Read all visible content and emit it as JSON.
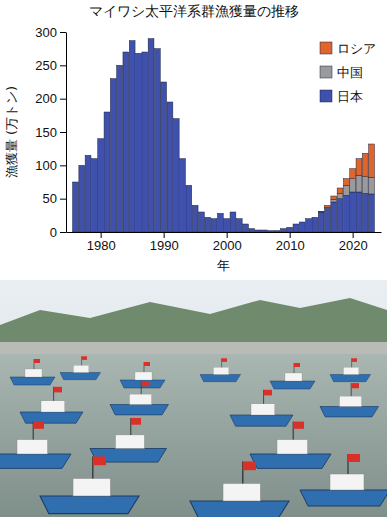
{
  "chart_data": {
    "type": "bar",
    "stacked": true,
    "title": "マイワシ太平洋系群漁獲量の推移",
    "x_label": "年",
    "y_label": "漁獲量 (万トン)",
    "x": [
      1976,
      1977,
      1978,
      1979,
      1980,
      1981,
      1982,
      1983,
      1984,
      1985,
      1986,
      1987,
      1988,
      1989,
      1990,
      1991,
      1992,
      1993,
      1994,
      1995,
      1996,
      1997,
      1998,
      1999,
      2000,
      2001,
      2002,
      2003,
      2004,
      2005,
      2006,
      2007,
      2008,
      2009,
      2010,
      2011,
      2012,
      2013,
      2014,
      2015,
      2016,
      2017,
      2018,
      2019,
      2020,
      2021,
      2022,
      2023
    ],
    "series": [
      {
        "name": "日本",
        "color": "#3f51ad",
        "values": [
          75,
          100,
          115,
          110,
          140,
          180,
          230,
          250,
          270,
          287,
          268,
          270,
          290,
          275,
          225,
          195,
          170,
          110,
          70,
          40,
          30,
          22,
          20,
          28,
          20,
          30,
          20,
          12,
          5,
          3,
          3,
          2,
          2,
          5,
          7,
          12,
          15,
          20,
          22,
          30,
          35,
          45,
          50,
          55,
          60,
          60,
          58,
          57
        ]
      },
      {
        "name": "中国",
        "color": "#9a9a9a",
        "values": [
          null,
          null,
          null,
          null,
          null,
          null,
          null,
          null,
          null,
          null,
          null,
          null,
          null,
          null,
          null,
          null,
          null,
          null,
          null,
          null,
          null,
          null,
          null,
          null,
          null,
          null,
          null,
          null,
          null,
          null,
          null,
          null,
          null,
          null,
          null,
          null,
          null,
          null,
          null,
          null,
          2,
          4,
          8,
          15,
          20,
          25,
          25,
          25
        ]
      },
      {
        "name": "ロシア",
        "color": "#e0652c",
        "values": [
          null,
          null,
          null,
          null,
          null,
          null,
          null,
          null,
          null,
          null,
          null,
          null,
          null,
          null,
          null,
          null,
          null,
          null,
          null,
          null,
          null,
          null,
          null,
          null,
          null,
          null,
          null,
          null,
          null,
          null,
          null,
          null,
          null,
          null,
          null,
          null,
          null,
          null,
          null,
          1,
          3,
          5,
          8,
          10,
          15,
          25,
          35,
          50
        ]
      }
    ],
    "xlim": [
      1974.5,
      2024.5
    ],
    "xticks": [
      1980,
      1990,
      2000,
      2010,
      2020
    ],
    "ylim": [
      0,
      300
    ],
    "yticks": [
      0,
      50,
      100,
      150,
      200,
      250,
      300
    ],
    "grid": false,
    "legend": "top-right"
  }
}
